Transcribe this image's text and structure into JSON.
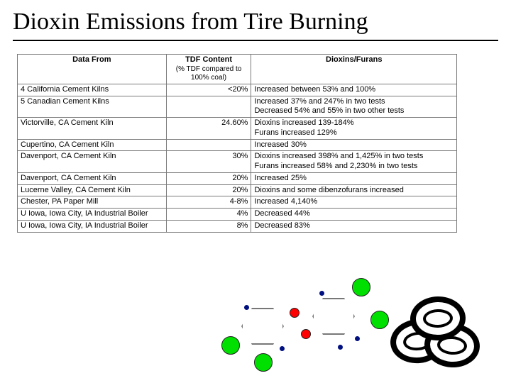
{
  "title": "Dioxin Emissions from Tire Burning",
  "table": {
    "headers": {
      "data_from": "Data From",
      "tdf_main": "TDF Content",
      "tdf_sub": "(% TDF compared to 100% coal)",
      "dioxins": "Dioxins/Furans"
    },
    "rows": [
      {
        "data_from": "4 California Cement Kilns",
        "tdf": "<20%",
        "dioxins": "Increased between 53% and 100%"
      },
      {
        "data_from": "5 Canadian Cement Kilns",
        "tdf": "",
        "dioxins": "Increased 37% and 247% in two tests\nDecreased 54% and 55% in two other tests"
      },
      {
        "data_from": "Victorville, CA Cement Kiln",
        "tdf": "24.60%",
        "dioxins": "Dioxins increased 139-184%\nFurans increased 129%"
      },
      {
        "data_from": "Cupertino, CA Cement Kiln",
        "tdf": "",
        "dioxins": "Increased 30%"
      },
      {
        "data_from": "Davenport, CA Cement Kiln",
        "tdf": "30%",
        "dioxins": "Dioxins increased 398% and 1,425% in two tests\nFurans increased 58% and 2,230% in two tests"
      },
      {
        "data_from": "Davenport, CA Cement Kiln",
        "tdf": "20%",
        "dioxins": "Increased 25%"
      },
      {
        "data_from": "Lucerne Valley, CA Cement Kiln",
        "tdf": "20%",
        "dioxins": "Dioxins and some dibenzofurans increased"
      },
      {
        "data_from": "Chester, PA Paper Mill",
        "tdf": "4-8%",
        "dioxins": "Increased 4,140%"
      },
      {
        "data_from": "U Iowa, Iowa City, IA Industrial Boiler",
        "tdf": "4%",
        "dioxins": "Decreased 44%"
      },
      {
        "data_from": "U Iowa, Iowa City, IA Industrial Boiler",
        "tdf": "8%",
        "dioxins": "Decreased 83%"
      }
    ]
  },
  "colors": {
    "green": "#00e000",
    "red": "#ff0000",
    "blue": "#001080",
    "border": "#7a7a7a"
  }
}
